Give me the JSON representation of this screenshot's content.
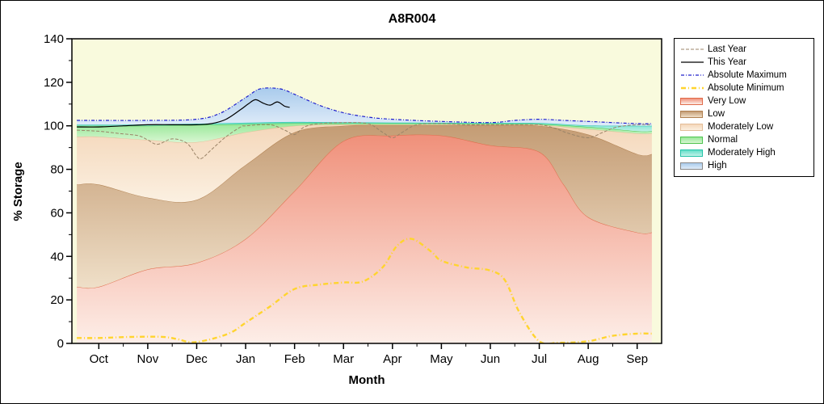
{
  "frame": {
    "bg": "#ffffff",
    "border_color": "#000000"
  },
  "chart_data": {
    "type": "area",
    "title": "A8R004",
    "xlabel": "Month",
    "ylabel": "% Storage",
    "x_categories": [
      "Oct",
      "Nov",
      "Dec",
      "Jan",
      "Feb",
      "Mar",
      "Apr",
      "May",
      "Jun",
      "Jul",
      "Aug",
      "Sep"
    ],
    "y_ticks": [
      0,
      20,
      40,
      60,
      80,
      100,
      120,
      140
    ],
    "ylim": [
      0,
      140
    ],
    "x_domain": [
      -0.55,
      11.5
    ],
    "plot_bg": "#f9fadd",
    "axis_color": "#000000",
    "series": {
      "very_low_top": {
        "x": [
          -0.45,
          0,
          1,
          2,
          3,
          4,
          5,
          6,
          7,
          8,
          9,
          9.5,
          10,
          11,
          11.3
        ],
        "y": [
          26,
          26,
          34,
          37,
          48,
          70,
          93,
          95.5,
          95.5,
          91,
          88,
          73,
          58,
          51,
          51
        ]
      },
      "low_top": {
        "x": [
          -0.45,
          0,
          1,
          2,
          3,
          4,
          5,
          6,
          7,
          8,
          9,
          10,
          11,
          11.3
        ],
        "y": [
          73,
          73,
          67,
          66,
          82,
          97,
          100,
          100.3,
          100.3,
          100.3,
          100,
          96,
          87,
          87
        ]
      },
      "mod_low_top": {
        "x": [
          -0.45,
          0,
          1,
          2,
          3,
          4,
          5,
          6,
          7,
          8,
          9,
          10,
          11,
          11.3
        ],
        "y": [
          95,
          95,
          93.5,
          92.5,
          97,
          100,
          100.6,
          100.6,
          100.6,
          100.6,
          100.4,
          98.5,
          96.5,
          96.5
        ]
      },
      "normal_top": {
        "x": [
          -0.45,
          0,
          1,
          2,
          3,
          4,
          5,
          6,
          7,
          8,
          9,
          10,
          11,
          11.3
        ],
        "y": [
          100,
          100,
          100,
          100.4,
          100.8,
          101.2,
          101.1,
          101.1,
          101.1,
          101,
          100.8,
          99.5,
          97.5,
          97.5
        ]
      },
      "mod_high_top": {
        "x": [
          -0.45,
          0,
          1,
          2,
          3,
          4,
          5,
          6,
          7,
          8,
          9,
          10,
          11,
          11.3
        ],
        "y": [
          100.5,
          100.5,
          100.6,
          101,
          101.4,
          101.8,
          101.6,
          101.5,
          101.4,
          101.3,
          101.3,
          100.2,
          100,
          100
        ]
      },
      "abs_max": {
        "x": [
          -0.45,
          0,
          1,
          2,
          2.5,
          3,
          3.3,
          3.7,
          4,
          4.5,
          5,
          5.5,
          6,
          7,
          8,
          8.5,
          9,
          9.5,
          10,
          11,
          11.3
        ],
        "y": [
          102.5,
          102.5,
          102.5,
          103,
          106,
          113,
          117,
          117,
          114.5,
          109.5,
          106,
          104,
          103,
          102,
          101.5,
          102.5,
          103,
          102.5,
          102,
          101,
          101
        ]
      },
      "abs_min": {
        "x": [
          -0.45,
          0,
          0.7,
          1.3,
          1.6,
          1.9,
          2.3,
          2.7,
          3,
          3.5,
          4,
          4.5,
          5,
          5.4,
          5.8,
          6.1,
          6.4,
          6.8,
          7,
          7.5,
          8,
          8.3,
          8.6,
          9,
          9.4,
          10,
          10.5,
          11,
          11.3
        ],
        "y": [
          2.5,
          2.5,
          3,
          3,
          2,
          0.5,
          2,
          5,
          9.5,
          17,
          25,
          27,
          28,
          28.5,
          35,
          45,
          48,
          42,
          38,
          35,
          33.5,
          29,
          14,
          1,
          0.3,
          1,
          3.5,
          4.5,
          4.5
        ]
      },
      "last_year": {
        "x": [
          -0.45,
          0,
          0.4,
          0.8,
          1,
          1.2,
          1.5,
          1.8,
          2,
          2.1,
          2.3,
          2.6,
          2.9,
          3,
          3.5,
          3.8,
          4,
          4.2,
          4.5,
          5,
          5.5,
          5.8,
          6,
          6.2,
          6.5,
          7,
          7.5,
          8,
          8.5,
          9,
          9.3,
          9.6,
          10,
          10.3,
          10.6,
          11,
          11.3
        ],
        "y": [
          98,
          97.5,
          96.5,
          95.5,
          93.5,
          91.5,
          94,
          92,
          86,
          85,
          89,
          95,
          99.5,
          100,
          100.5,
          98,
          96,
          99.5,
          101,
          101.5,
          101,
          97,
          94.5,
          97,
          100.5,
          101,
          100.5,
          100.5,
          100.5,
          100.5,
          99,
          96.5,
          94.5,
          97,
          99.5,
          100.5,
          100.5
        ]
      },
      "this_year": {
        "x": [
          -0.45,
          0,
          0.5,
          1,
          1.5,
          2,
          2.3,
          2.6,
          2.9,
          3.05,
          3.2,
          3.35,
          3.5,
          3.65,
          3.8,
          3.9
        ],
        "y": [
          99.5,
          99.5,
          100,
          100.5,
          100.5,
          100.5,
          101,
          103,
          107.5,
          110,
          112,
          110.5,
          109.5,
          111,
          109,
          108.5
        ]
      }
    },
    "bands": [
      {
        "name": "very_low",
        "label": "Very Low",
        "lower": null,
        "upper": "very_low_top",
        "top_color": "#f0907a",
        "bottom_color": "#fdeee8",
        "edge": "#e06a49"
      },
      {
        "name": "low",
        "label": "Low",
        "lower": "very_low_top",
        "upper": "low_top",
        "top_color": "#c49c74",
        "bottom_color": "#efdfc8",
        "edge": "#b08050"
      },
      {
        "name": "mod_low",
        "label": "Moderately Low",
        "lower": "low_top",
        "upper": "mod_low_top",
        "top_color": "#f4d7ba",
        "bottom_color": "#fbf0e1",
        "edge": "#e3bd97"
      },
      {
        "name": "normal",
        "label": "Normal",
        "lower": "mod_low_top",
        "upper": "normal_top",
        "top_color": "#98e898",
        "bottom_color": "#d8f6d2",
        "edge": "#4ec44e"
      },
      {
        "name": "mod_high",
        "label": "Moderately High",
        "lower": "normal_top",
        "upper": "mod_high_top",
        "top_color": "#63dfc9",
        "bottom_color": "#c2f2e8",
        "edge": "#22c3a7"
      },
      {
        "name": "high",
        "label": "High",
        "lower": "mod_high_top",
        "upper": "abs_max",
        "top_color": "#a9cbec",
        "bottom_color": "#e0ecf9",
        "edge": null
      }
    ],
    "lines": [
      {
        "name": "last_year",
        "label": "Last Year",
        "series": "last_year",
        "color": "#9b8468",
        "dash": "4 2",
        "width": 1
      },
      {
        "name": "this_year",
        "label": "This Year",
        "series": "this_year",
        "color": "#000000",
        "dash": "",
        "width": 1.2
      },
      {
        "name": "abs_max",
        "label": "Absolute Maximum",
        "series": "abs_max",
        "color": "#2020cc",
        "dash": "4 2 1 2",
        "width": 1.2
      },
      {
        "name": "abs_min",
        "label": "Absolute Minimum",
        "series": "abs_min",
        "color": "#ffd42e",
        "dash": "6 3 1 3",
        "width": 2.4
      }
    ],
    "legend_order": [
      "last_year",
      "this_year",
      "abs_max",
      "abs_min",
      "very_low",
      "low",
      "mod_low",
      "normal",
      "mod_high",
      "high"
    ]
  }
}
